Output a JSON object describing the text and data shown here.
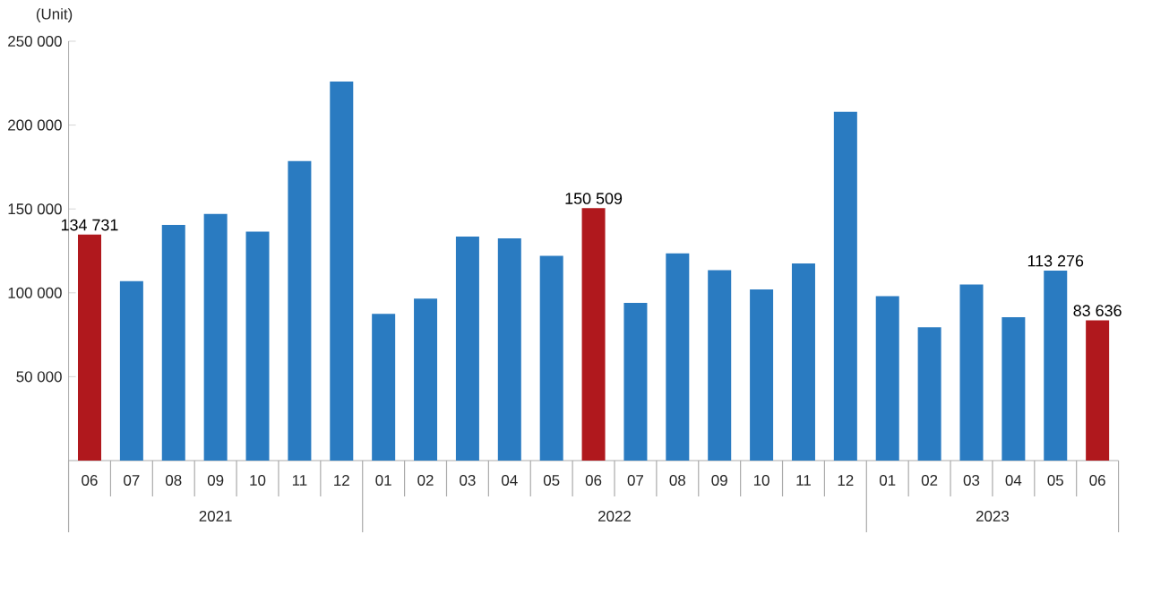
{
  "chart_data": {
    "type": "bar",
    "ylabel": "(Unit)",
    "categories": [
      "06",
      "07",
      "08",
      "09",
      "10",
      "11",
      "12",
      "01",
      "02",
      "03",
      "04",
      "05",
      "06",
      "07",
      "08",
      "09",
      "10",
      "11",
      "12",
      "01",
      "02",
      "03",
      "04",
      "05",
      "06"
    ],
    "values": [
      134731,
      107000,
      140500,
      147000,
      136500,
      178500,
      226000,
      87500,
      96500,
      133500,
      132500,
      122000,
      150509,
      94000,
      123500,
      113500,
      102000,
      117500,
      208000,
      98000,
      79500,
      105000,
      85500,
      113276,
      83636
    ],
    "colors": [
      "#b0181d",
      "#2a7bc1",
      "#2a7bc1",
      "#2a7bc1",
      "#2a7bc1",
      "#2a7bc1",
      "#2a7bc1",
      "#2a7bc1",
      "#2a7bc1",
      "#2a7bc1",
      "#2a7bc1",
      "#2a7bc1",
      "#b0181d",
      "#2a7bc1",
      "#2a7bc1",
      "#2a7bc1",
      "#2a7bc1",
      "#2a7bc1",
      "#2a7bc1",
      "#2a7bc1",
      "#2a7bc1",
      "#2a7bc1",
      "#2a7bc1",
      "#2a7bc1",
      "#b0181d"
    ],
    "value_labels": [
      "134 731",
      null,
      null,
      null,
      null,
      null,
      null,
      null,
      null,
      null,
      null,
      null,
      "150 509",
      null,
      null,
      null,
      null,
      null,
      null,
      null,
      null,
      null,
      null,
      "113 276",
      "83 636"
    ],
    "ylim": [
      0,
      250000
    ],
    "yticks": [
      {
        "value": 50000,
        "label": "50 000"
      },
      {
        "value": 100000,
        "label": "100 000"
      },
      {
        "value": 150000,
        "label": "150 000"
      },
      {
        "value": 200000,
        "label": "200 000"
      },
      {
        "value": 250000,
        "label": "250 000"
      }
    ],
    "annotations": [
      "2021",
      "2022",
      "2023"
    ],
    "grid": false
  }
}
